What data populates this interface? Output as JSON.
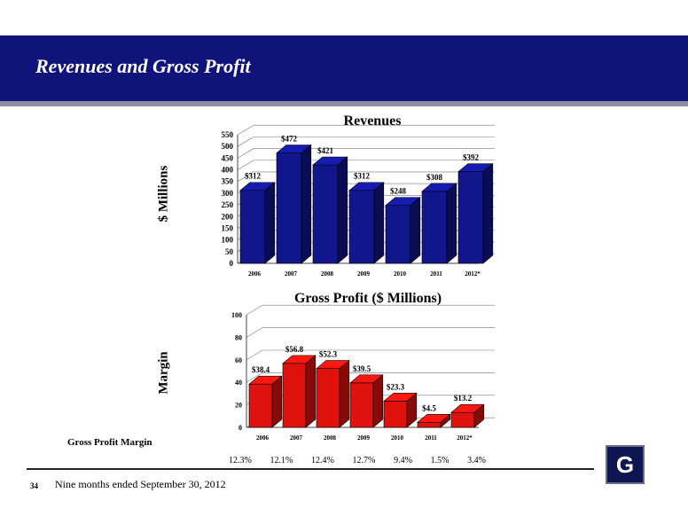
{
  "header": {
    "title": "Revenues and Gross Profit"
  },
  "chart_data": [
    {
      "type": "bar",
      "title": "Revenues",
      "ylabel": "$ Millions",
      "categories": [
        "2006",
        "2007",
        "2008",
        "2009",
        "2010",
        "2011",
        "2012*"
      ],
      "values": [
        312,
        472,
        421,
        312,
        248,
        308,
        392
      ],
      "data_labels": [
        "$312",
        "$472",
        "$421",
        "$312",
        "$248",
        "$308",
        "$392"
      ],
      "yticks": [
        0,
        50,
        100,
        150,
        200,
        250,
        300,
        350,
        400,
        450,
        500,
        550
      ],
      "ylim": [
        0,
        550
      ],
      "grid": true,
      "color": "#11168c"
    },
    {
      "type": "bar",
      "title": "Gross Profit ($ Millions)",
      "ylabel": "Margin",
      "categories": [
        "2006",
        "2007",
        "2008",
        "2009",
        "2010",
        "2011",
        "2012*"
      ],
      "values": [
        38.4,
        56.8,
        52.3,
        39.5,
        23.3,
        4.5,
        13.2
      ],
      "data_labels": [
        "$38.4",
        "$56.8",
        "$52.3",
        "$39.5",
        "$23.3",
        "$4.5",
        "$13.2"
      ],
      "yticks": [
        0,
        20,
        40,
        60,
        80,
        100
      ],
      "ylim": [
        0,
        100
      ],
      "grid": true,
      "color": "#e0120e"
    }
  ],
  "gross_profit_margin": {
    "label": "Gross Profit Margin",
    "values": [
      "12.3%",
      "12.1%",
      "12.4%",
      "12.7%",
      "9.4%",
      "1.5%",
      "3.4%"
    ]
  },
  "footer": {
    "page_number": "34",
    "note": "Nine months ended September 30, 2012"
  },
  "logo": {
    "letter": "G"
  }
}
